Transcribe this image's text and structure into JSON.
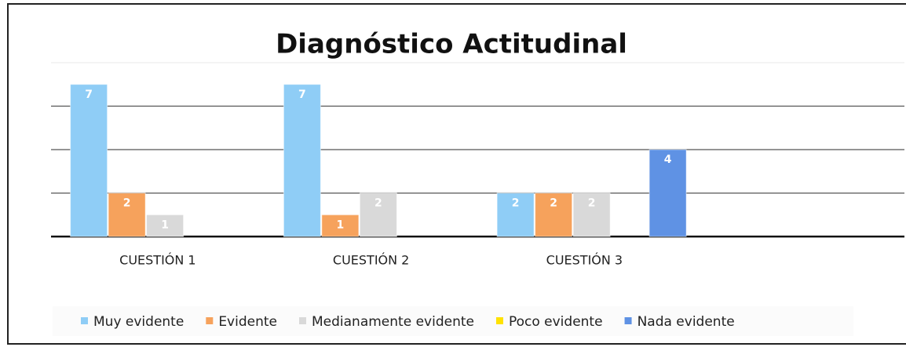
{
  "chart_data": {
    "type": "bar",
    "title": "Diagnóstico Actitudinal",
    "categories": [
      "CUESTIÓN 1",
      "CUESTIÓN 2",
      "CUESTIÓN 3",
      null
    ],
    "series": [
      {
        "name": "Muy evidente",
        "color": "#8fcdf6",
        "values": [
          7,
          7,
          2,
          null
        ]
      },
      {
        "name": "Evidente",
        "color": "#f6a25c",
        "values": [
          2,
          1,
          2,
          null
        ]
      },
      {
        "name": "Medianamente evidente",
        "color": "#d9d9d9",
        "values": [
          1,
          2,
          2,
          null
        ]
      },
      {
        "name": "Poco evidente",
        "color": "#ffe200",
        "values": [
          null,
          null,
          null,
          null
        ]
      },
      {
        "name": "Nada evidente",
        "color": "#5f92e4",
        "values": [
          null,
          null,
          4,
          null
        ]
      }
    ],
    "ylim": [
      0,
      8
    ],
    "yticks": [
      0,
      2,
      4,
      6,
      8
    ],
    "grid": true,
    "legend": "bottom"
  }
}
